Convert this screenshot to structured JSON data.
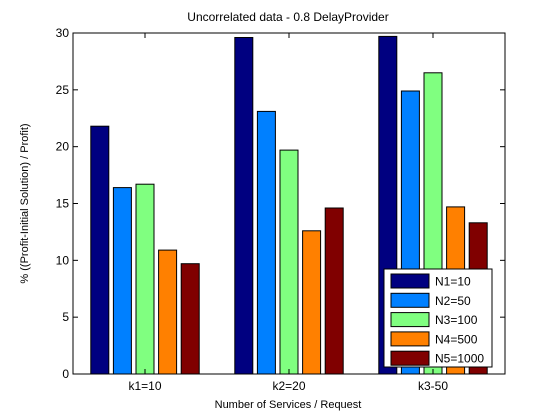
{
  "chart_data": {
    "type": "bar",
    "title": "Uncorrelated data - 0.8 DelayProvider",
    "xlabel": "Number of Services / Request",
    "ylabel": "% ((Profit-Initial Solution) / Profit)",
    "categories": [
      "k1=10",
      "k2=20",
      "k3-50"
    ],
    "ylim": [
      0,
      30
    ],
    "yticks": [
      "0",
      "5",
      "10",
      "15",
      "20",
      "25",
      "30"
    ],
    "grid": false,
    "legend_position": "bottom-right",
    "series": [
      {
        "name": "N1=10",
        "color": "#000080",
        "values": [
          21.8,
          29.6,
          29.7
        ]
      },
      {
        "name": "N2=50",
        "color": "#0080ff",
        "values": [
          16.4,
          23.1,
          24.9
        ]
      },
      {
        "name": "N3=100",
        "color": "#80ff80",
        "values": [
          16.7,
          19.7,
          26.5
        ]
      },
      {
        "name": "N4=500",
        "color": "#ff8000",
        "values": [
          10.9,
          12.6,
          14.7
        ]
      },
      {
        "name": "N5=1000",
        "color": "#800000",
        "values": [
          9.7,
          14.6,
          13.3
        ]
      }
    ]
  }
}
